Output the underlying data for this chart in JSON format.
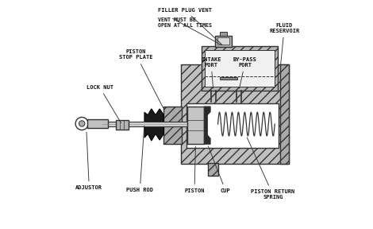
{
  "bg_color": "#ffffff",
  "line_color": "#333333",
  "figsize": [
    4.7,
    2.88
  ],
  "dpi": 100,
  "labels": {
    "filler_plug_vent_line1": "FILLER PLUG VENT",
    "filler_plug_vent_line2": "VENT MUST BE\nOPEN AT ALL TIMES",
    "fluid_reservoir": "FLUID\nRESERVOIR",
    "intake_port": "INTAKE\nPORT",
    "bypass_port": "BY-PASS\nPORT",
    "lock_nut": "LOCK NUT",
    "piston_stop_plate": "PISTON\nSTOP PLATE",
    "adjustor": "ADJUSTOR",
    "push_rod": "PUSH ROD",
    "piston": "PISTON",
    "cup": "CUP",
    "piston_return_spring": "PISTON RETURN\nSPRING"
  }
}
